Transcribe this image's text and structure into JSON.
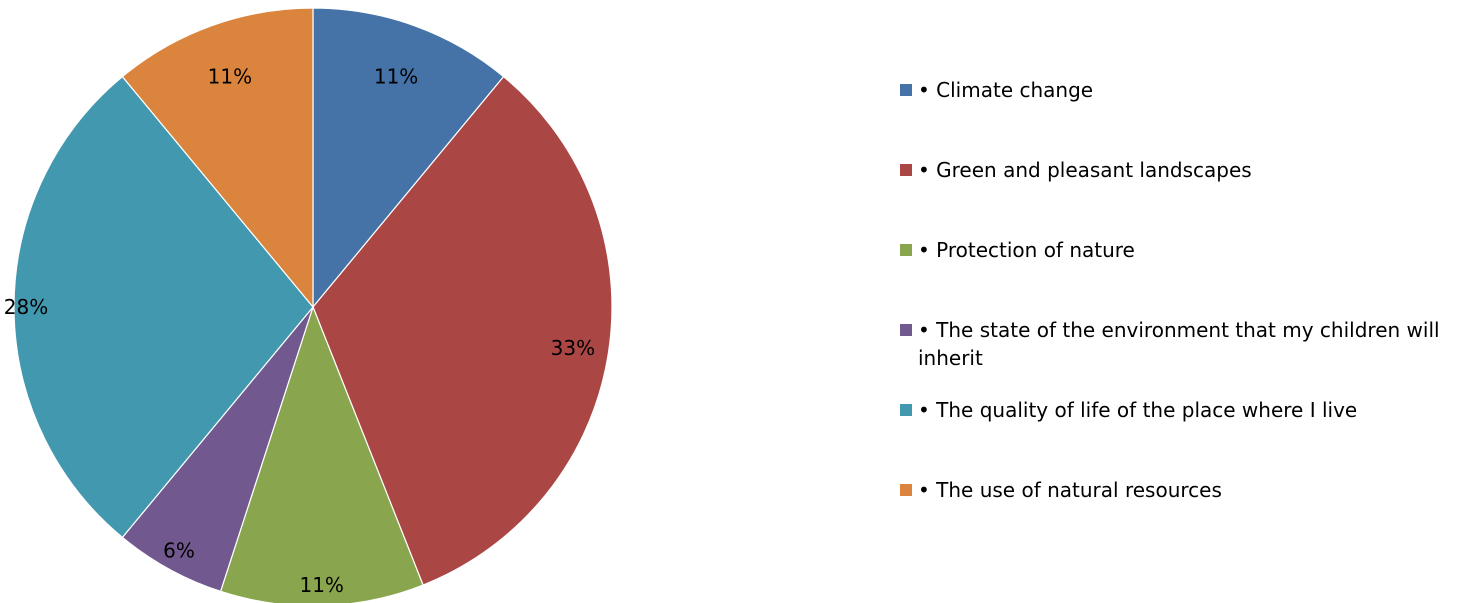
{
  "chart_data": {
    "type": "pie",
    "title": "",
    "legend_position": "right",
    "slices": [
      {
        "label": "• Climate change",
        "value": 11,
        "display": "11%",
        "color": "#4572A7"
      },
      {
        "label": "• Green and pleasant landscapes",
        "value": 33,
        "display": "33%",
        "color": "#AA4643"
      },
      {
        "label": "• Protection of nature",
        "value": 11,
        "display": "11%",
        "color": "#89A54E"
      },
      {
        "label": "• The state of the environment that my children will inherit",
        "value": 6,
        "display": "6%",
        "color": "#71588F"
      },
      {
        "label": "• The quality of life of the place where I live",
        "value": 28,
        "display": "28%",
        "color": "#4198AF"
      },
      {
        "label": "• The use of natural resources",
        "value": 11,
        "display": "11%",
        "color": "#DB843D"
      }
    ]
  }
}
